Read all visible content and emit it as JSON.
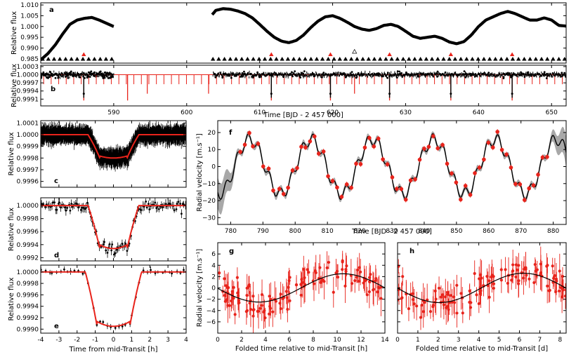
{
  "chart_data": [
    {
      "id": "a",
      "type": "scatter",
      "panel_label": "a",
      "ylabel": "Relative flux",
      "xlabel": "",
      "xlim": [
        580,
        652
      ],
      "ylim": [
        0.983,
        1.011
      ],
      "yticks": [
        "1.010",
        "1.005",
        "1.000",
        "0.995",
        "0.990",
        "0.985"
      ],
      "ytick_values": [
        1.01,
        1.005,
        1.0,
        0.995,
        0.99,
        0.985
      ],
      "segments": [
        {
          "x": [
            580,
            581,
            582,
            583,
            584,
            585,
            586,
            587,
            588,
            589,
            590
          ],
          "y": [
            0.9845,
            0.9875,
            0.9915,
            0.9965,
            1.001,
            1.003,
            1.0038,
            1.0042,
            1.003,
            1.0015,
            1.0
          ]
        },
        {
          "x": [
            603.5,
            604,
            605,
            606,
            607,
            608,
            609,
            610,
            611,
            612,
            613,
            614,
            615,
            616,
            617,
            618,
            619,
            620,
            621,
            622,
            623,
            624,
            625,
            626,
            627,
            628,
            629,
            630,
            631,
            632,
            633,
            634,
            635,
            636,
            637,
            638,
            639,
            640,
            641,
            642,
            643,
            644,
            645,
            646,
            647,
            648,
            649,
            650,
            651,
            652
          ],
          "y": [
            1.0055,
            1.0075,
            1.0083,
            1.008,
            1.0072,
            1.006,
            1.004,
            1.001,
            0.9978,
            0.995,
            0.9932,
            0.9925,
            0.9935,
            0.996,
            0.9995,
            1.0025,
            1.0045,
            1.005,
            1.0038,
            1.002,
            1.0,
            0.9988,
            0.9982,
            0.999,
            1.0005,
            1.001,
            1.0,
            0.9978,
            0.9955,
            0.9945,
            0.995,
            0.9955,
            0.9945,
            0.9928,
            0.992,
            0.993,
            0.996,
            1.0,
            1.003,
            1.0045,
            1.006,
            1.007,
            1.006,
            1.0045,
            1.003,
            1.003,
            1.004,
            1.003,
            1.0005,
            1.0002
          ]
        }
      ],
      "transit_markers_red": [
        585.9,
        611.6,
        619.7,
        627.8,
        636.2,
        644.6
      ],
      "open_marker": 623.0
    },
    {
      "id": "b",
      "type": "scatter",
      "panel_label": "b",
      "ylabel": "Relative flux",
      "xlabel": "Time [BJD - 2 457 000]",
      "xlim": [
        580,
        652
      ],
      "ylim": [
        0.99885,
        1.00035
      ],
      "yticks": [
        "1.0003",
        "1.0000",
        "0.9997",
        "0.9994",
        "0.9991"
      ],
      "ytick_values": [
        1.0003,
        1.0,
        0.9997,
        0.9994,
        0.9991
      ],
      "xticks": [
        "590",
        "600",
        "610",
        "620",
        "630",
        "640",
        "650"
      ],
      "xtick_values": [
        590,
        600,
        610,
        620,
        630,
        640,
        650
      ],
      "model_dips_deep": [
        585.9,
        591.9,
        611.6,
        619.7,
        627.8,
        636.2,
        644.6
      ],
      "model_dips_mid": [
        594.6,
        603.0,
        623.0
      ],
      "model_dip_period": 1.03,
      "model_dip_start": 580.4
    },
    {
      "id": "c",
      "type": "line",
      "panel_label": "c",
      "ylabel": "Relative flux",
      "xlim": [
        -4,
        4
      ],
      "ylim": [
        0.99955,
        1.00012
      ],
      "yticks": [
        "1.0001",
        "1.0000",
        "0.9999",
        "0.9998",
        "0.9997",
        "0.9996"
      ],
      "ytick_values": [
        1.0001,
        1.0,
        0.9999,
        0.9998,
        0.9997,
        0.9996
      ],
      "model": {
        "depth": 0.0002,
        "t1": 1.4,
        "t2": 0.75
      }
    },
    {
      "id": "d",
      "type": "line",
      "panel_label": "d",
      "ylabel": "Relative flux",
      "xlim": [
        -4,
        4
      ],
      "ylim": [
        0.99915,
        1.00012
      ],
      "yticks": [
        "1.0000",
        "0.9998",
        "0.9996",
        "0.9994",
        "0.9992"
      ],
      "ytick_values": [
        1.0,
        0.9998,
        0.9996,
        0.9994,
        0.9992
      ],
      "model": {
        "depth": 0.00066,
        "t1": 1.4,
        "t2": 0.75
      }
    },
    {
      "id": "e",
      "type": "line",
      "panel_label": "e",
      "ylabel": "Relative flux",
      "xlabel": "Time from mid-Transit [h]",
      "xlim": [
        -4,
        4
      ],
      "ylim": [
        0.99893,
        1.00012
      ],
      "yticks": [
        "1.0000",
        "0.9998",
        "0.9996",
        "0.9994",
        "0.9992",
        "0.9990"
      ],
      "ytick_values": [
        1.0,
        0.9998,
        0.9996,
        0.9994,
        0.9992,
        0.999
      ],
      "xticks": [
        "-4",
        "-3",
        "-2",
        "-1",
        "0",
        "1",
        "2",
        "3",
        "4"
      ],
      "xtick_values": [
        -4,
        -3,
        -2,
        -1,
        0,
        1,
        2,
        3,
        4
      ],
      "model": {
        "depth": 0.00095,
        "t1": 1.55,
        "t2": 0.9
      }
    },
    {
      "id": "f",
      "type": "line",
      "panel_label": "f",
      "ylabel": "Radial velocity [m.s⁻¹]",
      "xlabel": "Time [BJD - 2 457 000]",
      "xlim": [
        776,
        884
      ],
      "ylim": [
        -34,
        27
      ],
      "yticks": [
        "20",
        "10",
        "0",
        "−10",
        "−20",
        "−30"
      ],
      "ytick_values": [
        20,
        10,
        0,
        -10,
        -20,
        -30
      ],
      "xticks": [
        "780",
        "790",
        "800",
        "810",
        "820",
        "830",
        "840",
        "850",
        "860",
        "870",
        "880"
      ],
      "xtick_values": [
        780,
        790,
        800,
        810,
        820,
        830,
        840,
        850,
        860,
        870,
        880
      ],
      "model": {
        "A1": 16,
        "P1": 19.0,
        "t1": 781.2,
        "A2": 3.4,
        "P2": 3.37,
        "t2": 777.8
      },
      "rv_points_x": [
        783,
        784.4,
        785.8,
        786.9,
        788.5,
        790.1,
        791.8,
        793.2,
        795.1,
        796.4,
        797.8,
        799.2,
        800.6,
        801.9,
        803.2,
        804.6,
        806.0,
        807.3,
        808.8,
        810.2,
        811.6,
        813.0,
        814.4,
        816.0,
        817.4,
        818.9,
        820.3,
        821.6,
        823.0,
        824.4,
        825.8,
        827.2,
        828.6,
        830.1,
        831.5,
        832.9,
        834.3,
        835.8,
        837.2,
        838.6,
        840.0,
        841.4,
        842.8,
        844.2,
        845.7,
        847.1,
        848.5,
        849.9,
        851.3,
        852.8,
        854.3,
        855.7,
        857.1,
        858.5,
        859.9,
        861.3,
        862.7,
        864.1,
        865.5,
        866.9,
        868.3,
        869.7,
        871.1,
        872.5,
        873.9,
        875.3,
        876.7,
        878.1
      ]
    },
    {
      "id": "g",
      "type": "scatter",
      "panel_label": "g",
      "ylabel": "Radial velocity [m.s⁻¹]",
      "xlabel": "Folded time relative to mid-Transit [h]",
      "xlim": [
        0,
        14
      ],
      "ylim": [
        -8,
        8
      ],
      "yticks": [
        "6",
        "4",
        "2",
        "0",
        "−2",
        "−4",
        "−6"
      ],
      "ytick_values": [
        6,
        4,
        2,
        0,
        -2,
        -4,
        -6
      ],
      "xticks": [
        "0",
        "2",
        "4",
        "6",
        "8",
        "10",
        "12",
        "14"
      ],
      "xtick_values": [
        0,
        2,
        4,
        6,
        8,
        10,
        12,
        14
      ],
      "model": {
        "K": 2.5,
        "P": 14.1,
        "phase": 10.5
      }
    },
    {
      "id": "h",
      "type": "scatter",
      "panel_label": "h",
      "ylabel": "",
      "xlabel": "Folded time relative to mid-Transit [d]",
      "xlim": [
        0,
        8.3
      ],
      "ylim": [
        -8,
        8
      ],
      "yticks": [
        "6",
        "4",
        "2",
        "0",
        "−2",
        "−4",
        "−6"
      ],
      "ytick_values": [
        6,
        4,
        2,
        0,
        -2,
        -4,
        -6
      ],
      "xticks": [
        "0",
        "1",
        "2",
        "3",
        "4",
        "5",
        "6",
        "7",
        "8"
      ],
      "xtick_values": [
        0,
        1,
        2,
        3,
        4,
        5,
        6,
        7,
        8
      ],
      "model": {
        "K": 2.6,
        "P": 8.3,
        "phase": 6.2
      }
    }
  ]
}
